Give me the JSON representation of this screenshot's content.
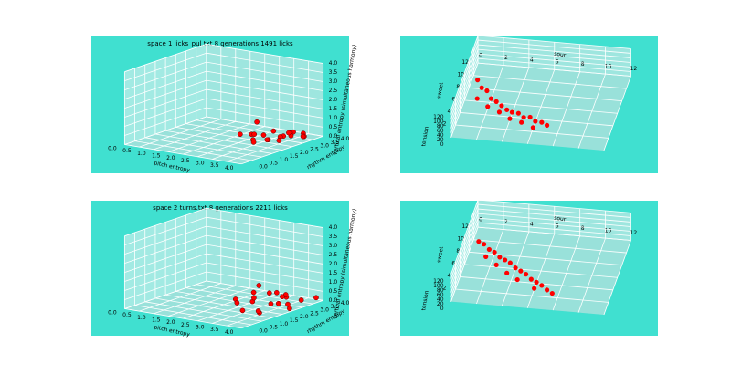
{
  "chart_data": [
    {
      "type": "scatter3d",
      "title": "space 1 licks_pul.txt 8 generations 1491 licks",
      "background": "#40e0d0",
      "color": "#ff0000",
      "xlabel": "pitch entropy",
      "ylabel": "rhythm entropy",
      "zlabel": "vertical entropy (simultaneous harmony)",
      "xlim": [
        0,
        4
      ],
      "ylim": [
        0,
        4
      ],
      "zlim": [
        0,
        4
      ],
      "xticks": [
        {
          "value": 0,
          "label": "0.0"
        },
        {
          "value": 0.5,
          "label": "0.5"
        },
        {
          "value": 1,
          "label": "1.0"
        },
        {
          "value": 1.5,
          "label": "1.5"
        },
        {
          "value": 2,
          "label": "2.0"
        },
        {
          "value": 2.5,
          "label": "2.5"
        },
        {
          "value": 3,
          "label": "3.0"
        },
        {
          "value": 3.5,
          "label": "3.5"
        },
        {
          "value": 4,
          "label": "4.0"
        }
      ],
      "yticks": [
        {
          "value": 0,
          "label": "0.0"
        },
        {
          "value": 0.5,
          "label": "0.5"
        },
        {
          "value": 1,
          "label": "1.0"
        },
        {
          "value": 1.5,
          "label": "1.5"
        },
        {
          "value": 2,
          "label": "2.0"
        },
        {
          "value": 2.5,
          "label": "2.5"
        },
        {
          "value": 3,
          "label": "3.0"
        },
        {
          "value": 3.5,
          "label": "3.5"
        },
        {
          "value": 4,
          "label": "4.0"
        }
      ],
      "zticks": [
        {
          "value": 0,
          "label": "0.0"
        },
        {
          "value": 0.5,
          "label": "0.5"
        },
        {
          "value": 1,
          "label": "1.0"
        },
        {
          "value": 1.5,
          "label": "1.5"
        },
        {
          "value": 2,
          "label": "2.0"
        },
        {
          "value": 2.5,
          "label": "2.5"
        },
        {
          "value": 3,
          "label": "3.0"
        },
        {
          "value": 3.5,
          "label": "3.5"
        },
        {
          "value": 4,
          "label": "4.0"
        }
      ],
      "x": [
        2.6,
        2.8,
        3.0,
        3.2,
        3.4,
        3.6,
        2.9,
        3.1,
        3.3,
        3.5,
        3.7,
        2.7,
        3.0,
        3.2,
        3.4,
        3.6,
        3.8,
        2.5,
        3.1,
        3.3
      ],
      "y": [
        2.5,
        2.8,
        3.0,
        3.2,
        3.4,
        3.6,
        2.2,
        2.6,
        2.9,
        3.1,
        3.5,
        1.8,
        2.0,
        2.4,
        2.7,
        3.0,
        3.3,
        2.9,
        3.6,
        1.6
      ],
      "z": [
        0.3,
        0.2,
        0.4,
        0.1,
        0.3,
        0.2,
        0.5,
        0.1,
        0.2,
        0.4,
        0.1,
        0.6,
        0.3,
        0.2,
        0.1,
        0.3,
        0.2,
        0.8,
        0.1,
        0.4
      ]
    },
    {
      "type": "scatter3d",
      "background": "#40e0d0",
      "color": "#ff0000",
      "xlabel": "sour",
      "ylabel": "sweet",
      "zlabel": "tension",
      "xlim": [
        0,
        12
      ],
      "ylim": [
        0,
        12
      ],
      "zlim": [
        0,
        120
      ],
      "xticks": [
        0,
        2,
        4,
        6,
        8,
        10,
        12
      ],
      "yticks": [
        2,
        4,
        6,
        8,
        10,
        12
      ],
      "zticks": [
        0,
        20,
        40,
        60,
        80,
        100,
        120
      ],
      "x": [
        0.5,
        1,
        1.5,
        2,
        2.5,
        3,
        3.5,
        4,
        4.5,
        5,
        5.5,
        6,
        6.5,
        7,
        1,
        2,
        3,
        4,
        5,
        6
      ],
      "y": [
        9,
        8,
        7.5,
        6.5,
        6,
        5.5,
        5,
        4.5,
        4.5,
        4,
        4,
        3.5,
        3.5,
        3,
        6,
        5,
        4.5,
        3.5,
        3,
        2.5
      ],
      "z": [
        10,
        5,
        8,
        3,
        6,
        4,
        2,
        7,
        5,
        3,
        6,
        4,
        2,
        5,
        12,
        9,
        3,
        6,
        8,
        4
      ]
    },
    {
      "type": "scatter3d",
      "title": "space 2 turns.txt 8 generations 2211 licks",
      "background": "#40e0d0",
      "color": "#ff0000",
      "xlabel": "pitch entropy",
      "ylabel": "rhythm entropy",
      "zlabel": "vertical entropy (simultaneous harmony)",
      "xlim": [
        0,
        4
      ],
      "ylim": [
        0,
        4
      ],
      "zlim": [
        0,
        4
      ],
      "xticks": [
        {
          "value": 0,
          "label": "0.0"
        },
        {
          "value": 0.5,
          "label": "0.5"
        },
        {
          "value": 1,
          "label": "1.0"
        },
        {
          "value": 1.5,
          "label": "1.5"
        },
        {
          "value": 2,
          "label": "2.0"
        },
        {
          "value": 2.5,
          "label": "2.5"
        },
        {
          "value": 3,
          "label": "3.0"
        },
        {
          "value": 3.5,
          "label": "3.5"
        },
        {
          "value": 4,
          "label": "4.0"
        }
      ],
      "yticks": [
        {
          "value": 0,
          "label": "0.0"
        },
        {
          "value": 0.5,
          "label": "0.5"
        },
        {
          "value": 1,
          "label": "1.0"
        },
        {
          "value": 1.5,
          "label": "1.5"
        },
        {
          "value": 2,
          "label": "2.0"
        },
        {
          "value": 2.5,
          "label": "2.5"
        },
        {
          "value": 3,
          "label": "3.0"
        },
        {
          "value": 3.5,
          "label": "3.5"
        },
        {
          "value": 4,
          "label": "4.0"
        }
      ],
      "zticks": [
        {
          "value": 0,
          "label": "0.0"
        },
        {
          "value": 0.5,
          "label": "0.5"
        },
        {
          "value": 1,
          "label": "1.0"
        },
        {
          "value": 1.5,
          "label": "1.5"
        },
        {
          "value": 2,
          "label": "2.0"
        },
        {
          "value": 2.5,
          "label": "2.5"
        },
        {
          "value": 3,
          "label": "3.0"
        },
        {
          "value": 3.5,
          "label": "3.5"
        },
        {
          "value": 4,
          "label": "4.0"
        }
      ],
      "x": [
        2.4,
        2.7,
        3.0,
        3.3,
        3.6,
        3.9,
        2.8,
        3.1,
        3.4,
        3.7,
        2.5,
        2.9,
        3.2,
        3.5,
        3.8,
        2.6,
        3.0,
        3.3,
        3.6,
        3.9
      ],
      "y": [
        2.0,
        2.4,
        2.8,
        3.2,
        3.5,
        3.8,
        1.5,
        1.9,
        2.3,
        2.7,
        3.0,
        3.3,
        1.2,
        1.6,
        2.1,
        2.6,
        3.6,
        3.0,
        1.4,
        2.5
      ],
      "z": [
        0.4,
        0.2,
        0.6,
        0.3,
        0.1,
        0.2,
        0.5,
        0.7,
        0.3,
        0.2,
        0.8,
        0.4,
        0.3,
        0.1,
        0.5,
        0.6,
        0.2,
        0.4,
        0.3,
        0.1
      ]
    },
    {
      "type": "scatter3d",
      "background": "#40e0d0",
      "color": "#ff0000",
      "xlabel": "sour",
      "ylabel": "sweet",
      "zlabel": "tension",
      "xlim": [
        0,
        12
      ],
      "ylim": [
        0,
        12
      ],
      "zlim": [
        0,
        120
      ],
      "xticks": [
        0,
        2,
        4,
        6,
        8,
        10,
        12
      ],
      "yticks": [
        2,
        4,
        6,
        8,
        10,
        12
      ],
      "zticks": [
        0,
        20,
        40,
        60,
        80,
        100,
        120
      ],
      "x": [
        0.5,
        1,
        1.5,
        2,
        2.5,
        3,
        3.5,
        4,
        4.5,
        5,
        5.5,
        6,
        6.5,
        7,
        7.5,
        1.5,
        2.5,
        3.5,
        4.5,
        6
      ],
      "y": [
        9.5,
        9,
        8.5,
        8,
        7.5,
        7,
        6.5,
        6,
        5.5,
        5,
        4.5,
        4,
        3.5,
        3,
        2.5,
        7,
        6,
        5,
        4,
        3
      ],
      "z": [
        8,
        12,
        5,
        9,
        3,
        7,
        10,
        4,
        6,
        8,
        2,
        5,
        7,
        3,
        4,
        14,
        10,
        6,
        9,
        5
      ]
    }
  ]
}
